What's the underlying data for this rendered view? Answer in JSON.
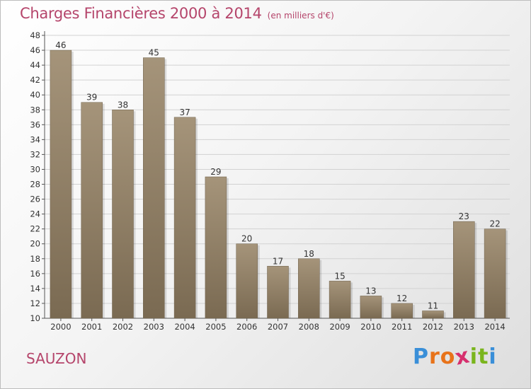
{
  "header": {
    "title": "Charges Financières 2000 à 2014",
    "subtitle": "(en milliers d'€)"
  },
  "footer": {
    "place": "SAUZON",
    "logo_letters": [
      "P",
      "r",
      "o",
      "x",
      "i",
      "t",
      "i"
    ],
    "logo_colors": [
      "#3a8fd8",
      "#e8731a",
      "#e8731a",
      "#d6306e",
      "#7ab51d",
      "#7ab51d",
      "#3a8fd8"
    ]
  },
  "colors": {
    "bar_light": "#a5947a",
    "bar_dark": "#7a6a52",
    "title": "#b5456b"
  },
  "chart_data": {
    "type": "bar",
    "categories": [
      "2000",
      "2001",
      "2002",
      "2003",
      "2004",
      "2005",
      "2006",
      "2007",
      "2008",
      "2009",
      "2010",
      "2011",
      "2012",
      "2013",
      "2014"
    ],
    "values": [
      46,
      39,
      38,
      45,
      37,
      29,
      20,
      17,
      18,
      15,
      13,
      12,
      11,
      23,
      22
    ],
    "ylim": [
      10,
      48
    ],
    "ytick_step": 2,
    "grid": true
  }
}
